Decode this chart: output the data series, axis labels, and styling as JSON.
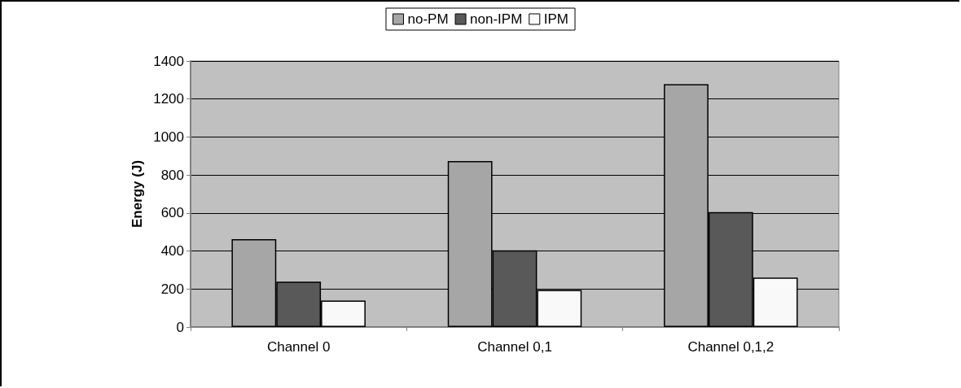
{
  "chart_data": {
    "type": "bar",
    "ylabel": "Energy (J)",
    "categories": [
      "Channel 0",
      "Channel 0,1",
      "Channel 0,1,2"
    ],
    "series": [
      {
        "name": "no-PM",
        "color": "#a6a6a6",
        "values": [
          462,
          873,
          1278
        ]
      },
      {
        "name": "non-IPM",
        "color": "#595959",
        "values": [
          239,
          404,
          605
        ]
      },
      {
        "name": "IPM",
        "color": "#f9f9f9",
        "values": [
          139,
          195,
          260
        ]
      }
    ],
    "ylim": [
      0,
      1400
    ],
    "yticks": [
      0,
      200,
      400,
      600,
      800,
      1000,
      1200,
      1400
    ],
    "grid": "y",
    "legend": "top"
  }
}
